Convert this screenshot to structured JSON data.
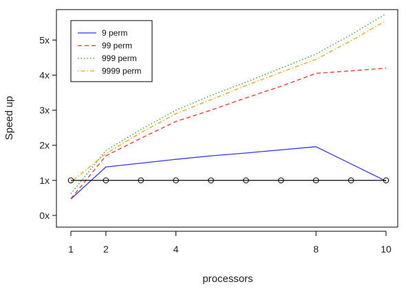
{
  "chart_data": {
    "type": "line",
    "xlabel": "processors",
    "ylabel": "Speed up",
    "xlim": [
      1,
      10
    ],
    "ylim": [
      0,
      5.75
    ],
    "x_ticks": [
      1,
      2,
      4,
      8,
      10
    ],
    "x_tick_labels": [
      "1",
      "2",
      "4",
      "8",
      "10"
    ],
    "y_ticks": [
      0,
      1,
      2,
      3,
      4,
      5
    ],
    "y_tick_labels": [
      "0x",
      "1x",
      "2x",
      "3x",
      "4x",
      "5x"
    ],
    "legend_position": "top-left",
    "series": [
      {
        "name": "9 perm",
        "color": "#3333ff",
        "dash": "solid",
        "x": [
          1,
          2,
          4,
          5,
          6,
          8,
          10
        ],
        "y": [
          0.47,
          1.38,
          1.6,
          1.7,
          1.78,
          1.96,
          0.98
        ]
      },
      {
        "name": "99 perm",
        "color": "#ff2a2a",
        "dash": "dashed",
        "x": [
          1,
          2,
          3,
          4,
          5,
          6,
          7,
          8,
          9,
          10
        ],
        "y": [
          0.48,
          1.7,
          2.2,
          2.68,
          3.0,
          3.35,
          3.68,
          4.05,
          4.12,
          4.2
        ]
      },
      {
        "name": "999 perm",
        "color": "#22a022",
        "dash": "dotted",
        "x": [
          1,
          2,
          3,
          4,
          5,
          6,
          7,
          8,
          9,
          10
        ],
        "y": [
          0.62,
          1.85,
          2.45,
          3.0,
          3.42,
          3.8,
          4.2,
          4.6,
          5.15,
          5.75
        ]
      },
      {
        "name": "9999 perm",
        "color": "#f0a500",
        "dash": "dotdash",
        "x": [
          1,
          2,
          3,
          4,
          5,
          6,
          7,
          8,
          9,
          10
        ],
        "y": [
          0.95,
          1.76,
          2.36,
          2.9,
          3.3,
          3.7,
          4.08,
          4.45,
          4.98,
          5.55
        ]
      }
    ],
    "reference": {
      "y": 1.0,
      "color": "#000000",
      "markers_x": [
        1,
        2,
        3,
        4,
        5,
        6,
        7,
        8,
        9,
        10
      ]
    }
  }
}
